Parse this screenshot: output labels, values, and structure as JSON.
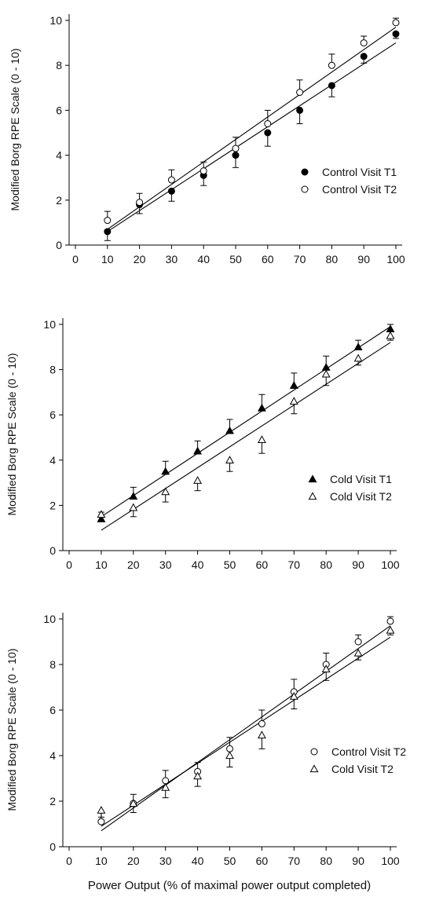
{
  "figure": {
    "xlabel": "Power Output (% of maximal power output completed)"
  },
  "chart_data": [
    {
      "type": "scatter",
      "ylabel": "Modified Borg RPE Scale (0 - 10)",
      "xlim": [
        0,
        100
      ],
      "ylim": [
        0,
        10
      ],
      "xticks": [
        0,
        10,
        20,
        30,
        40,
        50,
        60,
        70,
        80,
        90,
        100
      ],
      "yticks": [
        0,
        2,
        4,
        6,
        8,
        10
      ],
      "legend_position": "right",
      "x": [
        10,
        20,
        30,
        40,
        50,
        60,
        70,
        80,
        90,
        100
      ],
      "series": [
        {
          "name": "Control Visit T1",
          "marker": "filled-circle",
          "values": [
            0.6,
            1.8,
            2.4,
            3.1,
            4.0,
            5.0,
            6.0,
            7.1,
            8.4,
            9.4
          ],
          "error": [
            0.4,
            0.4,
            0.45,
            0.45,
            0.55,
            0.6,
            0.6,
            0.5,
            0.3,
            0.2
          ],
          "error_dir": "down",
          "fit": [
            0.6,
            9.0
          ]
        },
        {
          "name": "Control Visit T2",
          "marker": "open-circle",
          "values": [
            1.1,
            1.9,
            2.9,
            3.3,
            4.3,
            5.4,
            6.8,
            8.0,
            9.0,
            9.9
          ],
          "error": [
            0.4,
            0.4,
            0.45,
            0.4,
            0.5,
            0.6,
            0.55,
            0.5,
            0.3,
            0.2
          ],
          "error_dir": "up",
          "fit": [
            0.7,
            9.7
          ]
        }
      ]
    },
    {
      "type": "scatter",
      "ylabel": "Modified Borg RPE Scale (0 - 10)",
      "xlim": [
        0,
        100
      ],
      "ylim": [
        0,
        10
      ],
      "xticks": [
        0,
        10,
        20,
        30,
        40,
        50,
        60,
        70,
        80,
        90,
        100
      ],
      "yticks": [
        0,
        2,
        4,
        6,
        8,
        10
      ],
      "legend_position": "right",
      "x": [
        10,
        20,
        30,
        40,
        50,
        60,
        70,
        80,
        90,
        100
      ],
      "series": [
        {
          "name": "Cold Visit T1",
          "marker": "filled-triangle",
          "values": [
            1.4,
            2.4,
            3.5,
            4.4,
            5.3,
            6.3,
            7.3,
            8.1,
            9.0,
            9.8
          ],
          "error": [
            0.3,
            0.4,
            0.45,
            0.45,
            0.5,
            0.6,
            0.55,
            0.5,
            0.3,
            0.2
          ],
          "error_dir": "up",
          "fit": [
            1.5,
            9.9
          ]
        },
        {
          "name": "Cold Visit T2",
          "marker": "open-triangle",
          "values": [
            1.6,
            1.9,
            2.6,
            3.1,
            4.0,
            4.9,
            6.6,
            7.8,
            8.5,
            9.5
          ],
          "error": [
            0.3,
            0.4,
            0.45,
            0.45,
            0.5,
            0.6,
            0.55,
            0.5,
            0.3,
            0.2
          ],
          "error_dir": "down",
          "fit": [
            0.9,
            9.2
          ]
        }
      ]
    },
    {
      "type": "scatter",
      "ylabel": "Modified Borg RPE Scale (0 - 10)",
      "xlim": [
        0,
        100
      ],
      "ylim": [
        0,
        10
      ],
      "xticks": [
        0,
        10,
        20,
        30,
        40,
        50,
        60,
        70,
        80,
        90,
        100
      ],
      "yticks": [
        0,
        2,
        4,
        6,
        8,
        10
      ],
      "legend_position": "right",
      "x": [
        10,
        20,
        30,
        40,
        50,
        60,
        70,
        80,
        90,
        100
      ],
      "series": [
        {
          "name": "Control Visit T2",
          "marker": "open-circle",
          "values": [
            1.1,
            1.9,
            2.9,
            3.3,
            4.3,
            5.4,
            6.8,
            8.0,
            9.0,
            9.9
          ],
          "error": [
            0.4,
            0.4,
            0.45,
            0.4,
            0.5,
            0.6,
            0.55,
            0.5,
            0.3,
            0.2
          ],
          "error_dir": "up",
          "fit": [
            0.7,
            9.7
          ]
        },
        {
          "name": "Cold Visit T2",
          "marker": "open-triangle",
          "values": [
            1.6,
            1.9,
            2.6,
            3.1,
            4.0,
            4.9,
            6.6,
            7.8,
            8.5,
            9.5
          ],
          "error": [
            0.3,
            0.4,
            0.45,
            0.45,
            0.5,
            0.6,
            0.55,
            0.5,
            0.3,
            0.2
          ],
          "error_dir": "down",
          "fit": [
            0.9,
            9.2
          ]
        }
      ]
    }
  ]
}
